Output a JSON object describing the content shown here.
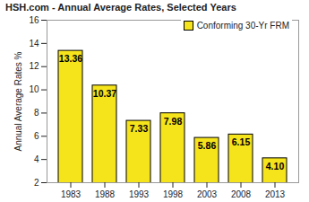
{
  "chart_data": {
    "type": "bar",
    "title": "HSH.com - Annual Average Rates, Selected Years",
    "y_label": "Annual Average Rates %",
    "categories": [
      "1983",
      "1988",
      "1993",
      "1998",
      "2003",
      "2008",
      "2013"
    ],
    "series": [
      {
        "name": "Conforming 30-Yr FRM",
        "color": "#f5e31c",
        "values": [
          13.36,
          10.37,
          7.33,
          7.98,
          5.86,
          6.15,
          4.1
        ],
        "value_labels": [
          "13.36",
          "10.37",
          "7.33",
          "7.98",
          "5.86",
          "6.15",
          "4.10"
        ]
      }
    ],
    "ylim": [
      2,
      16
    ],
    "yticks": [
      2,
      4,
      6,
      8,
      10,
      12,
      14,
      16
    ],
    "grid": false,
    "legend": "top-right",
    "data_labels": true
  }
}
